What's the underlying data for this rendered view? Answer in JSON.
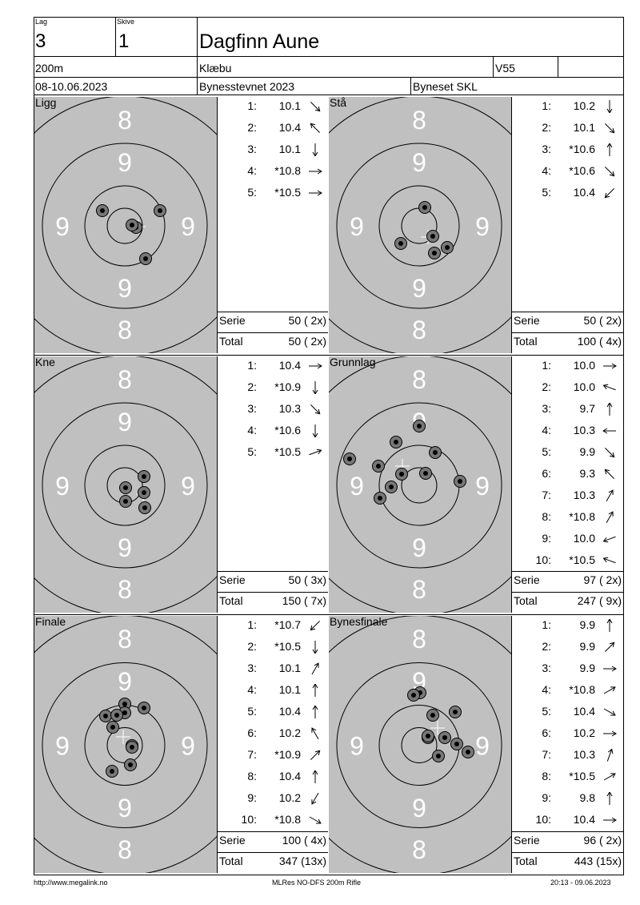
{
  "header": {
    "lag_label": "Lag",
    "lag_value": "3",
    "skive_label": "Skive",
    "skive_value": "1",
    "name": "Dagfinn Aune",
    "distance": "200m",
    "club": "Klæbu",
    "class": "V55",
    "dates": "08-10.06.2023",
    "event": "Bynesstevnet 2023",
    "venue": "Byneset SKL"
  },
  "rings": {
    "outer": "8",
    "inner": "9"
  },
  "panels": [
    {
      "title": "Ligg",
      "shots": [
        {
          "n": "1:",
          "v": "10.1",
          "dir": 45
        },
        {
          "n": "2:",
          "v": "10.4",
          "dir": -135
        },
        {
          "n": "3:",
          "v": "10.1",
          "dir": 90
        },
        {
          "n": "4:",
          "v": "*10.8",
          "dir": 0
        },
        {
          "n": "5:",
          "v": "*10.5",
          "dir": 0
        }
      ],
      "serie_label": "Serie",
      "serie": "50 ( 2x)",
      "total_label": "Total",
      "total": "50 ( 2x)"
    },
    {
      "title": "Stå",
      "shots": [
        {
          "n": "1:",
          "v": "10.2",
          "dir": 90
        },
        {
          "n": "2:",
          "v": "10.1",
          "dir": 45
        },
        {
          "n": "3:",
          "v": "*10.6",
          "dir": -90
        },
        {
          "n": "4:",
          "v": "*10.6",
          "dir": 45
        },
        {
          "n": "5:",
          "v": "10.4",
          "dir": 135
        }
      ],
      "serie_label": "Serie",
      "serie": "50 ( 2x)",
      "total_label": "Total",
      "total": "100 ( 4x)"
    },
    {
      "title": "Kne",
      "shots": [
        {
          "n": "1:",
          "v": "10.4",
          "dir": 0
        },
        {
          "n": "2:",
          "v": "*10.9",
          "dir": 90
        },
        {
          "n": "3:",
          "v": "10.3",
          "dir": 45
        },
        {
          "n": "4:",
          "v": "*10.6",
          "dir": 90
        },
        {
          "n": "5:",
          "v": "*10.5",
          "dir": -20
        }
      ],
      "serie_label": "Serie",
      "serie": "50 ( 3x)",
      "total_label": "Total",
      "total": "150 ( 7x)"
    },
    {
      "title": "Grunnlag",
      "shots": [
        {
          "n": "1:",
          "v": "10.0",
          "dir": 0
        },
        {
          "n": "2:",
          "v": "10.0",
          "dir": -160
        },
        {
          "n": "3:",
          "v": "9.7",
          "dir": -90
        },
        {
          "n": "4:",
          "v": "10.3",
          "dir": 180
        },
        {
          "n": "5:",
          "v": "9.9",
          "dir": 45
        },
        {
          "n": "6:",
          "v": "9.3",
          "dir": -135
        },
        {
          "n": "7:",
          "v": "10.3",
          "dir": -60
        },
        {
          "n": "8:",
          "v": "*10.8",
          "dir": -60
        },
        {
          "n": "9:",
          "v": "10.0",
          "dir": 160
        },
        {
          "n": "10:",
          "v": "*10.5",
          "dir": -160
        }
      ],
      "serie_label": "Serie",
      "serie": "97 ( 2x)",
      "total_label": "Total",
      "total": "247 ( 9x)"
    },
    {
      "title": "Finale",
      "shots": [
        {
          "n": "1:",
          "v": "*10.7",
          "dir": 135
        },
        {
          "n": "2:",
          "v": "*10.5",
          "dir": 90
        },
        {
          "n": "3:",
          "v": "10.1",
          "dir": -60
        },
        {
          "n": "4:",
          "v": "10.1",
          "dir": -90
        },
        {
          "n": "5:",
          "v": "10.4",
          "dir": -90
        },
        {
          "n": "6:",
          "v": "10.2",
          "dir": -120
        },
        {
          "n": "7:",
          "v": "*10.9",
          "dir": -45
        },
        {
          "n": "8:",
          "v": "10.4",
          "dir": -90
        },
        {
          "n": "9:",
          "v": "10.2",
          "dir": 120
        },
        {
          "n": "10:",
          "v": "*10.8",
          "dir": 30
        }
      ],
      "serie_label": "Serie",
      "serie": "100 ( 4x)",
      "total_label": "Total",
      "total": "347 (13x)"
    },
    {
      "title": "Bynesfinale",
      "shots": [
        {
          "n": "1:",
          "v": "9.9",
          "dir": -90
        },
        {
          "n": "2:",
          "v": "9.9",
          "dir": -45
        },
        {
          "n": "3:",
          "v": "9.9",
          "dir": 0
        },
        {
          "n": "4:",
          "v": "*10.8",
          "dir": -30
        },
        {
          "n": "5:",
          "v": "10.4",
          "dir": 30
        },
        {
          "n": "6:",
          "v": "10.2",
          "dir": 0
        },
        {
          "n": "7:",
          "v": "10.3",
          "dir": -70
        },
        {
          "n": "8:",
          "v": "*10.5",
          "dir": -30
        },
        {
          "n": "9:",
          "v": "9.8",
          "dir": -90
        },
        {
          "n": "10:",
          "v": "10.4",
          "dir": 0
        }
      ],
      "serie_label": "Serie",
      "serie": "96 ( 2x)",
      "total_label": "Total",
      "total": "443 (15x)"
    }
  ],
  "footer": {
    "left": "http://www.megalink.no",
    "center": "MLRes NO-DFS 200m Rifle",
    "right": "20:13 - 09.06.2023"
  }
}
